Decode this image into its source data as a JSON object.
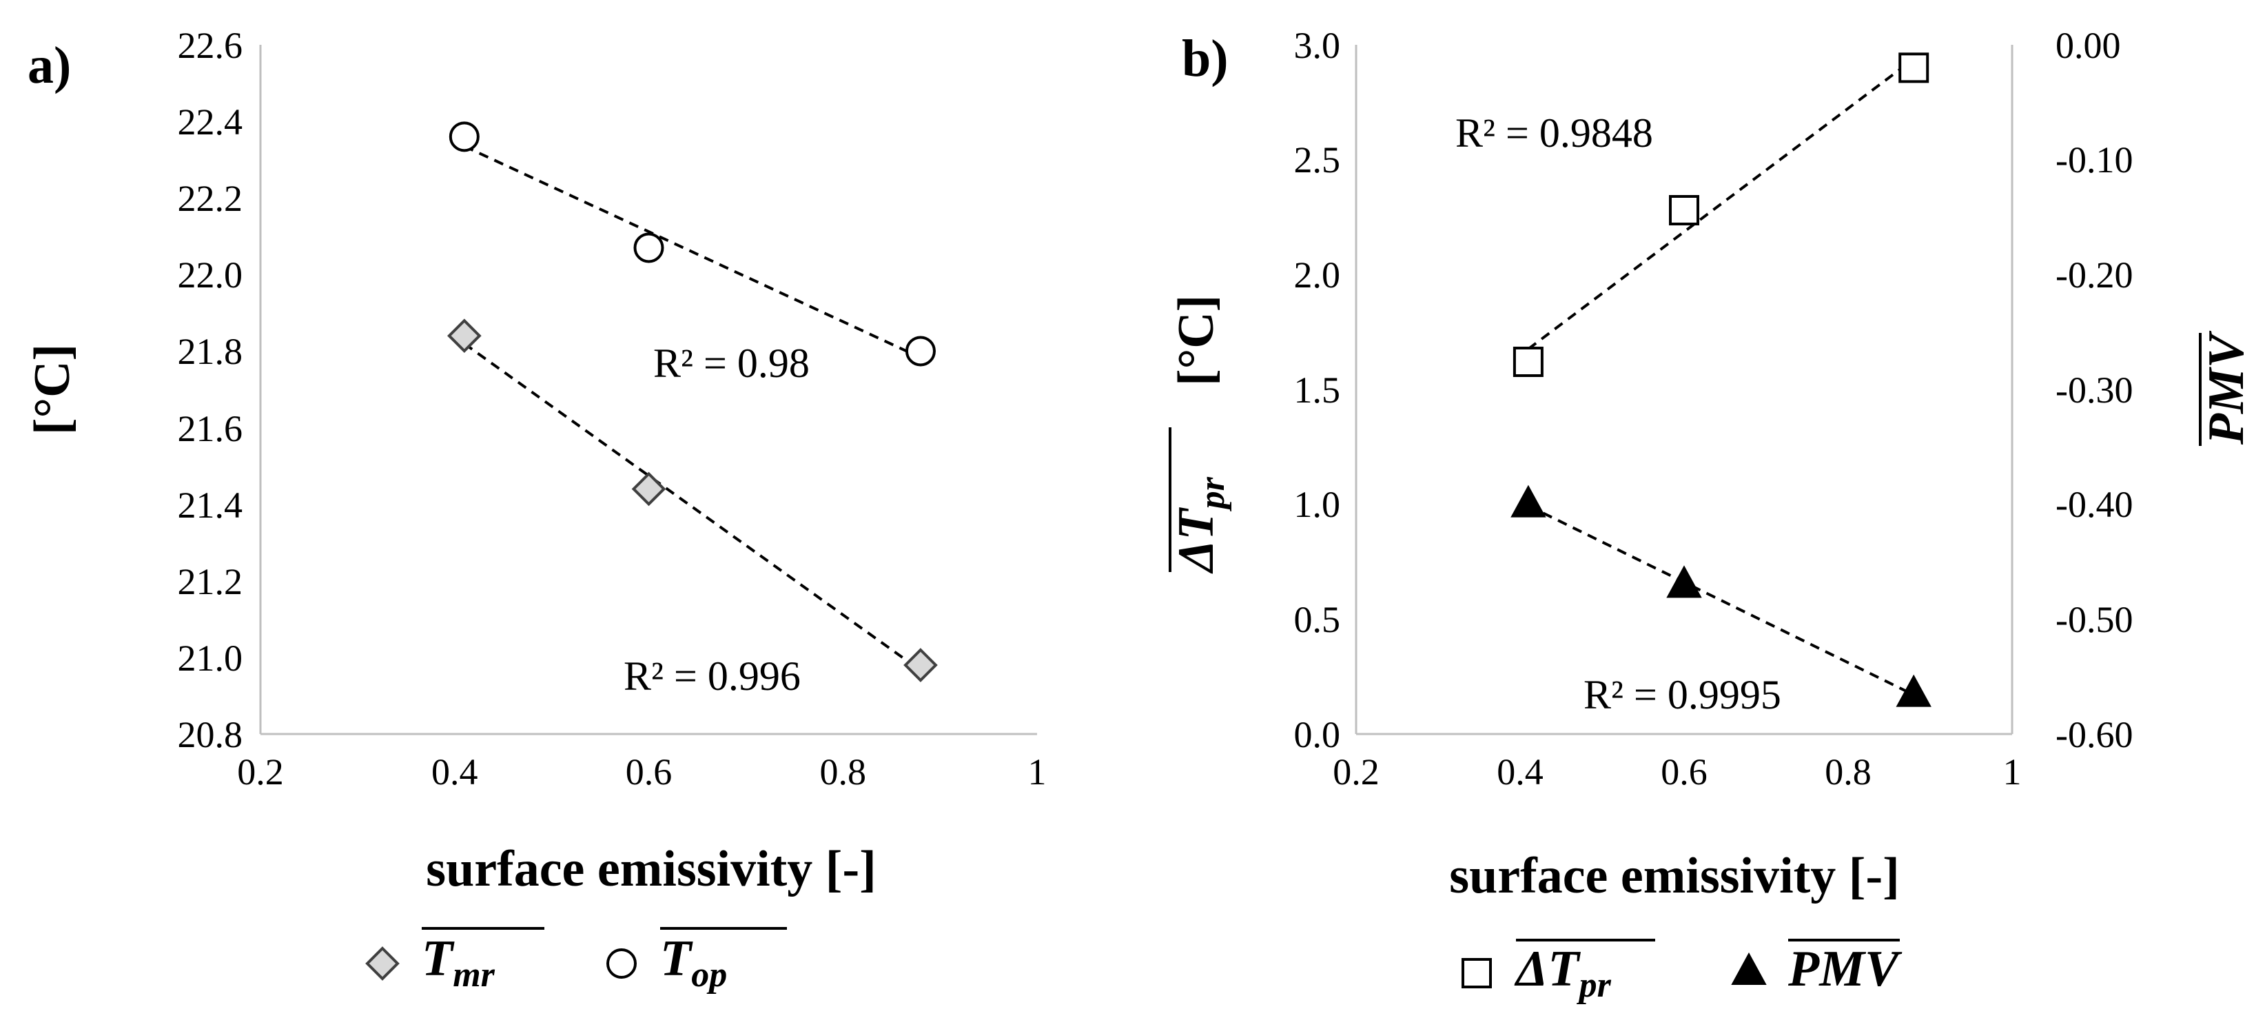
{
  "chart_data": [
    {
      "panel_label": "a)",
      "type": "scatter",
      "xlabel": "surface emissivity [-]",
      "ylabel": "[°C]",
      "xlim": [
        0.2,
        1.0
      ],
      "ylim": [
        20.8,
        22.6
      ],
      "xticks": [
        "0.2",
        "0.4",
        "0.6",
        "0.8",
        "1"
      ],
      "yticks": [
        "20.8",
        "21.0",
        "21.2",
        "21.4",
        "21.6",
        "21.8",
        "22.0",
        "22.2",
        "22.4",
        "22.6"
      ],
      "grid": false,
      "legend_position": "bottom",
      "series": [
        {
          "name": "T_mr",
          "symbol": "T",
          "subscript": "mr",
          "marker": "diamond",
          "x": [
            0.41,
            0.6,
            0.88
          ],
          "y": [
            21.84,
            21.44,
            20.98
          ],
          "trendline": "linear",
          "r2_label": "R² = 0.996"
        },
        {
          "name": "T_op",
          "symbol": "T",
          "subscript": "op",
          "marker": "circle",
          "x": [
            0.41,
            0.6,
            0.88
          ],
          "y": [
            22.36,
            22.07,
            21.8
          ],
          "trendline": "linear",
          "r2_label": "R² = 0.98"
        }
      ]
    },
    {
      "panel_label": "b)",
      "type": "scatter",
      "xlabel": "surface emissivity [-]",
      "ylabel_symbol": "ΔT",
      "ylabel_subscript": "pr",
      "ylabel_unit": "[°C]",
      "y2label": "PMV",
      "xlim": [
        0.2,
        1.0
      ],
      "ylim": [
        0.0,
        3.0
      ],
      "y2lim": [
        -0.6,
        0.0
      ],
      "xticks": [
        "0.2",
        "0.4",
        "0.6",
        "0.8",
        "1"
      ],
      "yticks": [
        "0.0",
        "0.5",
        "1.0",
        "1.5",
        "2.0",
        "2.5",
        "3.0"
      ],
      "y2ticks": [
        "-0.60",
        "-0.50",
        "-0.40",
        "-0.30",
        "-0.20",
        "-0.10",
        "0.00"
      ],
      "grid": false,
      "legend_position": "bottom",
      "series": [
        {
          "name": "ΔT_pr",
          "symbol": "ΔT",
          "subscript": "pr",
          "marker": "square",
          "axis": "left",
          "x": [
            0.41,
            0.6,
            0.88
          ],
          "y": [
            1.62,
            2.28,
            2.9
          ],
          "trendline": "linear",
          "r2_label": "R² = 0.9848"
        },
        {
          "name": "PMV",
          "symbol": "PMV",
          "subscript": "",
          "marker": "triangle",
          "axis": "right",
          "x": [
            0.41,
            0.6,
            0.88
          ],
          "y": [
            -0.4,
            -0.47,
            -0.565
          ],
          "trendline": "linear",
          "r2_label": "R² = 0.9995"
        }
      ]
    }
  ]
}
